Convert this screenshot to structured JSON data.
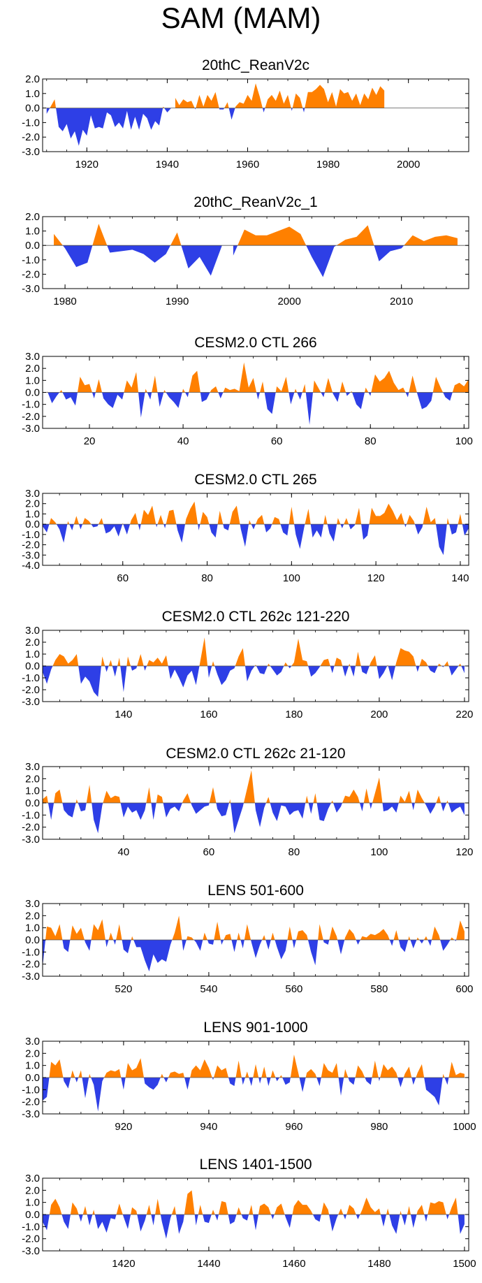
{
  "page_title": "SAM (MAM)",
  "colors": {
    "positive": "#ff8000",
    "negative": "#2e3fe6",
    "axis": "#000000"
  },
  "chart_data": [
    {
      "type": "area",
      "title": "20thC_ReanV2c",
      "xlim": [
        1909,
        2015
      ],
      "ylim": [
        -3,
        2
      ],
      "yticks": [
        2,
        1,
        0,
        -1,
        -2,
        -3
      ],
      "ytick_labels": [
        "2.0",
        "1.0",
        "0.0",
        "-1.0",
        "-2.0",
        "-3.0"
      ],
      "xticks": [
        1920,
        1940,
        1960,
        1980,
        2000
      ],
      "xtick_labels": [
        "1920",
        "1940",
        "1960",
        "1980",
        "2000"
      ],
      "x_start": 1910,
      "values": [
        -0.4,
        0.1,
        0.6,
        -1.3,
        -1.6,
        -1.1,
        -2.1,
        -1.6,
        -2.6,
        -1.5,
        -1.9,
        -0.5,
        -1.4,
        -1.3,
        -1.4,
        -0.3,
        -0.5,
        -1.3,
        -1.0,
        -1.4,
        -0.2,
        -1.5,
        -0.6,
        -1.5,
        -0.4,
        -0.7,
        -1.5,
        -0.9,
        -1.2,
        0.1,
        -0.3,
        0.0,
        0.7,
        0.2,
        0.6,
        0.4,
        0.5,
        -0.1,
        0.9,
        0.1,
        0.9,
        0.5,
        1.1,
        -0.1,
        -0.1,
        0.4,
        -0.8,
        0.1,
        0.4,
        0.3,
        0.9,
        0.5,
        1.7,
        0.8,
        -0.3,
        0.6,
        0.9,
        0.5,
        1.2,
        0.3,
        0.9,
        -0.2,
        1.0,
        0.7,
        -0.3,
        1.1,
        1.1,
        1.3,
        1.6,
        1.3,
        0.4,
        1.1,
        0.1,
        1.3,
        1.0,
        1.1,
        0.5,
        1.0,
        0.2,
        1.0,
        0.6,
        1.4,
        0.9,
        1.5,
        1.2
      ]
    },
    {
      "type": "area",
      "title": "20thC_ReanV2c_1",
      "xlim": [
        1978,
        2016
      ],
      "ylim": [
        -3,
        2
      ],
      "yticks": [
        2,
        1,
        0,
        -1,
        -2,
        -3
      ],
      "ytick_labels": [
        "2.0",
        "1.0",
        "0.0",
        "-1.0",
        "-2.0",
        "-3.0"
      ],
      "xticks": [
        1980,
        1990,
        2000,
        2010
      ],
      "xtick_labels": [
        "1980",
        "1990",
        "2000",
        "2010"
      ],
      "x_start": 1979,
      "values": [
        0.8,
        -0.2,
        -1.5,
        -1.2,
        1.5,
        -0.5,
        -0.4,
        -0.3,
        -0.6,
        -1.2,
        -0.6,
        0.9,
        -1.6,
        -0.8,
        -2.1,
        0.0,
        -0.7,
        1.1,
        0.7,
        0.7,
        1.0,
        1.3,
        0.8,
        -0.8,
        -2.2,
        -0.1,
        0.4,
        0.6,
        1.4,
        -1.1,
        -0.4,
        -0.2,
        0.7,
        0.3,
        0.6,
        0.7,
        0.5
      ]
    },
    {
      "type": "area",
      "title": "CESM2.0 CTL 266",
      "xlim": [
        10,
        101
      ],
      "ylim": [
        -3,
        3
      ],
      "yticks": [
        3,
        2,
        1,
        0,
        -1,
        -2,
        -3
      ],
      "ytick_labels": [
        "3.0",
        "2.0",
        "1.0",
        "0.0",
        "-1.0",
        "-2.0",
        "-3.0"
      ],
      "xticks": [
        20,
        40,
        60,
        80,
        100
      ],
      "xtick_labels": [
        "20",
        "40",
        "60",
        "80",
        "100"
      ],
      "x_start": 11,
      "values": [
        0.1,
        -0.9,
        -0.3,
        0.2,
        -0.6,
        -0.4,
        -1.1,
        1.3,
        0.6,
        0.7,
        -0.5,
        1.1,
        -0.5,
        -1.0,
        -1.3,
        -0.2,
        -0.6,
        1.0,
        0.4,
        1.7,
        -2.1,
        0.3,
        -0.6,
        1.4,
        -1.2,
        0.2,
        -0.4,
        -0.8,
        -1.3,
        0.3,
        -0.4,
        1.4,
        1.8,
        -0.8,
        -0.6,
        0.2,
        0.5,
        -0.5,
        0.4,
        0.2,
        0.3,
        0.1,
        2.5,
        0.4,
        1.2,
        -0.6,
        0.9,
        -1.4,
        -1.8,
        0.5,
        0.1,
        1.3,
        -1.0,
        0.3,
        -0.6,
        0.7,
        -2.7,
        1.0,
        0.3,
        -0.4,
        1.2,
        -0.1,
        -0.8,
        0.9,
        -0.3,
        0.1,
        -1.0,
        -1.4,
        0.4,
        -0.3,
        1.5,
        0.9,
        1.2,
        1.8,
        0.8,
        0.2,
        0.4,
        -0.4,
        1.4,
        -0.1,
        -1.4,
        -1.2,
        -0.7,
        1.3,
        0.4,
        -0.4,
        -0.7,
        0.6,
        0.8,
        0.5,
        1.1
      ]
    },
    {
      "type": "area",
      "title": "CESM2.0 CTL 265",
      "xlim": [
        41,
        142
      ],
      "ylim": [
        -4,
        3
      ],
      "yticks": [
        3,
        2,
        1,
        0,
        -1,
        -2,
        -3,
        -4
      ],
      "ytick_labels": [
        "3.0",
        "2.0",
        "1.0",
        "0.0",
        "-1.0",
        "-2.0",
        "-3.0",
        "-4.0"
      ],
      "xticks": [
        60,
        80,
        100,
        120,
        140
      ],
      "xtick_labels": [
        "60",
        "80",
        "100",
        "120",
        "140"
      ],
      "x_start": 41,
      "values": [
        -0.2,
        -0.8,
        0.6,
        0.2,
        -0.5,
        -1.8,
        0.3,
        -0.6,
        0.8,
        -0.5,
        0.6,
        0.3,
        -0.3,
        -0.2,
        0.6,
        -0.9,
        -0.7,
        -0.2,
        -1.2,
        0.1,
        -1.0,
        0.4,
        1.1,
        -0.6,
        1.4,
        0.9,
        1.8,
        -0.3,
        0.9,
        -0.4,
        1.3,
        1.4,
        -0.6,
        -1.8,
        0.5,
        1.5,
        2.2,
        -0.6,
        1.2,
        0.7,
        -0.8,
        -1.3,
        1.3,
        -0.4,
        -0.6,
        1.2,
        1.8,
        -0.5,
        -2.2,
        0.4,
        -0.5,
        0.5,
        0.9,
        -0.8,
        -0.4,
        0.7,
        0.5,
        -0.8,
        -1.1,
        1.7,
        -1.0,
        -2.4,
        -0.3,
        1.5,
        -1.3,
        -0.6,
        -1.3,
        0.9,
        -0.9,
        -1.7,
        0.6,
        -0.4,
        0.6,
        -0.5,
        -0.1,
        1.6,
        -1.5,
        -1.1,
        1.6,
        0.8,
        0.8,
        1.1,
        2.0,
        1.3,
        0.4,
        1.1,
        -0.3,
        0.9,
        0.3,
        -1.0,
        -0.3,
        1.7,
        0.2,
        0.6,
        -2.2,
        -3.0,
        0.6,
        -1.0,
        -0.8,
        1.0,
        -1.1,
        -0.4
      ]
    },
    {
      "type": "area",
      "title": "CESM2.0 CTL 262c 121-220",
      "xlim": [
        121,
        221
      ],
      "ylim": [
        -3,
        3
      ],
      "yticks": [
        3,
        2,
        1,
        0,
        -1,
        -2,
        -3
      ],
      "ytick_labels": [
        "3.0",
        "2.0",
        "1.0",
        "0.0",
        "-1.0",
        "-2.0",
        "-3.0"
      ],
      "xticks": [
        140,
        160,
        180,
        200,
        220
      ],
      "xtick_labels": [
        "140",
        "160",
        "180",
        "200",
        "220"
      ],
      "x_start": 121,
      "values": [
        -0.5,
        -1.5,
        -0.3,
        0.5,
        1.0,
        0.8,
        0.2,
        0.5,
        1.0,
        -1.5,
        -0.9,
        -1.3,
        -2.2,
        -2.6,
        0.8,
        -0.5,
        0.5,
        -0.9,
        0.7,
        -2.2,
        0.8,
        -0.4,
        -0.2,
        1.0,
        -0.4,
        0.5,
        0.3,
        0.7,
        0.2,
        0.9,
        -1.1,
        -0.3,
        -1.0,
        -1.8,
        -0.8,
        -0.4,
        -1.6,
        0.4,
        2.4,
        -1.0,
        0.4,
        -0.7,
        -1.6,
        -1.2,
        -0.4,
        -0.2,
        0.8,
        1.5,
        -1.3,
        -0.4,
        0.1,
        -0.6,
        -0.7,
        0.2,
        -0.3,
        -0.8,
        -0.5,
        0.3,
        -0.2,
        0.3,
        2.3,
        0.5,
        0.4,
        -0.9,
        -0.6,
        -0.1,
        0.5,
        0.6,
        -0.6,
        0.7,
        0.5,
        -0.9,
        0.2,
        -0.9,
        1.2,
        -0.5,
        -0.7,
        0.3,
        0.9,
        -1.1,
        -0.6,
        0.1,
        -1.2,
        0.3,
        1.5,
        1.3,
        1.2,
        0.8,
        -0.5,
        0.6,
        0.3,
        -0.4,
        -0.6,
        0.2,
        -0.1,
        0.4,
        -0.8,
        -0.3,
        0.2,
        -0.6
      ]
    },
    {
      "type": "area",
      "title": "CESM2.0 CTL 262c 21-120",
      "xlim": [
        21,
        121
      ],
      "ylim": [
        -3,
        3
      ],
      "yticks": [
        3,
        2,
        1,
        0,
        -1,
        -2,
        -3
      ],
      "ytick_labels": [
        "3.0",
        "2.0",
        "1.0",
        "0.0",
        "-1.0",
        "-2.0",
        "-3.0"
      ],
      "xticks": [
        40,
        60,
        80,
        100,
        120
      ],
      "xtick_labels": [
        "40",
        "60",
        "80",
        "100",
        "120"
      ],
      "x_start": 21,
      "values": [
        0.3,
        0.6,
        -1.4,
        0.8,
        1.1,
        -0.6,
        -1.0,
        -1.2,
        0.3,
        -0.7,
        -0.6,
        1.5,
        -1.4,
        -2.5,
        -0.2,
        1.0,
        0.4,
        0.6,
        0.5,
        -1.2,
        -0.3,
        -0.8,
        -0.6,
        -1.4,
        -0.6,
        1.3,
        -1.4,
        0.7,
        0.5,
        -1.2,
        -0.5,
        -0.3,
        -0.7,
        0.2,
        0.8,
        -0.2,
        -0.9,
        -0.6,
        -0.3,
        -0.2,
        1.3,
        -0.5,
        -1.1,
        -1.0,
        0.3,
        -2.5,
        -1.4,
        -0.3,
        1.2,
        2.7,
        -0.6,
        -2.0,
        -0.4,
        0.5,
        -0.8,
        -1.5,
        -0.2,
        -0.3,
        -1.0,
        -0.7,
        -0.6,
        -1.3,
        0.6,
        -0.9,
        0.8,
        -1.4,
        -1.5,
        -0.5,
        0.2,
        -0.8,
        -0.3,
        0.6,
        0.5,
        1.1,
        0.5,
        -0.7,
        1.2,
        -0.5,
        0.8,
        2.1,
        -0.7,
        -0.6,
        -0.3,
        -0.8,
        0.6,
        0.1,
        1.0,
        -0.6,
        1.1,
        0.4,
        -0.2,
        -0.9,
        -0.3,
        0.6,
        -0.7,
        0.2,
        -0.8,
        -0.5,
        -0.3,
        -1.0
      ]
    },
    {
      "type": "area",
      "title": "LENS 501-600",
      "xlim": [
        501,
        601
      ],
      "ylim": [
        -3,
        3
      ],
      "yticks": [
        3,
        2,
        1,
        0,
        -1,
        -2,
        -3
      ],
      "ytick_labels": [
        "3.0",
        "2.0",
        "1.0",
        "0.0",
        "-1.0",
        "-2.0",
        "-3.0"
      ],
      "xticks": [
        520,
        540,
        560,
        580,
        600
      ],
      "xtick_labels": [
        "520",
        "540",
        "560",
        "580",
        "600"
      ],
      "x_start": 501,
      "values": [
        -2.2,
        1.1,
        1.0,
        0.3,
        1.3,
        -0.7,
        -1.0,
        1.2,
        0.5,
        1.0,
        -0.2,
        -0.9,
        1.3,
        0.8,
        1.7,
        -0.6,
        0.6,
        -0.4,
        1.3,
        -0.8,
        -1.1,
        0.3,
        -0.6,
        -0.6,
        -1.7,
        -2.6,
        -1.2,
        -1.9,
        -1.6,
        -1.8,
        -0.4,
        0.6,
        2.0,
        -0.9,
        0.3,
        0.2,
        -0.2,
        -0.9,
        0.6,
        -0.3,
        -0.4,
        1.5,
        -0.4,
        0.4,
        0.5,
        -1.0,
        0.6,
        -0.7,
        1.3,
        -0.2,
        -1.5,
        -0.4,
        0.4,
        -0.8,
        0.6,
        -0.6,
        -1.6,
        -0.9,
        1.1,
        -0.7,
        0.7,
        0.8,
        0.4,
        -1.0,
        -2.1,
        1.3,
        -0.2,
        -0.4,
        1.1,
        0.3,
        -1.2,
        0.2,
        0.9,
        0.5,
        -0.4,
        0.3,
        0.2,
        0.5,
        0.4,
        0.6,
        0.9,
        0.4,
        -0.5,
        0.8,
        -0.6,
        -1.0,
        0.3,
        -0.7,
        0.2,
        -0.3,
        0.3,
        -0.5,
        1.1,
        0.4,
        -0.9,
        -0.4,
        0.2,
        -0.1,
        1.6,
        0.7
      ]
    },
    {
      "type": "area",
      "title": "LENS 901-1000",
      "xlim": [
        901,
        1001
      ],
      "ylim": [
        -3,
        3
      ],
      "yticks": [
        3,
        2,
        1,
        0,
        -1,
        -2,
        -3
      ],
      "ytick_labels": [
        "3.0",
        "2.0",
        "1.0",
        "0.0",
        "-1.0",
        "-2.0",
        "-3.0"
      ],
      "xticks": [
        920,
        940,
        960,
        980,
        1000
      ],
      "xtick_labels": [
        "920",
        "940",
        "960",
        "980",
        "1000"
      ],
      "x_start": 901,
      "values": [
        -1.9,
        -1.6,
        1.3,
        1.0,
        1.5,
        -0.3,
        -0.9,
        0.6,
        -0.4,
        0.6,
        -1.7,
        0.3,
        -0.6,
        -2.8,
        -0.3,
        0.4,
        0.6,
        0.5,
        0.7,
        -1.0,
        1.2,
        0.6,
        0.8,
        1.6,
        -0.5,
        -0.8,
        -1.0,
        -0.6,
        0.3,
        -0.4,
        0.4,
        0.5,
        0.3,
        0.4,
        -1.0,
        0.6,
        1.0,
        0.6,
        1.5,
        0.8,
        -0.2,
        1.0,
        0.6,
        0.8,
        -0.5,
        -0.7,
        1.4,
        -0.6,
        0.5,
        -0.7,
        1.1,
        -0.5,
        0.9,
        -0.7,
        0.6,
        -0.3,
        0.2,
        -0.6,
        -0.4,
        1.9,
        0.4,
        -1.2,
        0.4,
        0.7,
        0.3,
        -0.7,
        1.2,
        0.6,
        0.4,
        1.2,
        -1.5,
        0.7,
        -0.3,
        -0.6,
        1.0,
        0.5,
        -0.3,
        -0.6,
        1.4,
        -0.3,
        1.1,
        0.6,
        0.9,
        0.4,
        -0.8,
        0.3,
        0.9,
        -0.6,
        0.4,
        1.1,
        -1.0,
        -1.3,
        -1.6,
        -2.3,
        0.3,
        -0.6,
        1.3,
        0.2,
        0.4,
        0.3
      ]
    },
    {
      "type": "area",
      "title": "LENS 1401-1500",
      "xlim": [
        1401,
        1501
      ],
      "ylim": [
        -3,
        3
      ],
      "yticks": [
        3,
        2,
        1,
        0,
        -1,
        -2,
        -3
      ],
      "ytick_labels": [
        "3.0",
        "2.0",
        "1.0",
        "0.0",
        "-1.0",
        "-2.0",
        "-3.0"
      ],
      "xticks": [
        1420,
        1440,
        1460,
        1480,
        1500
      ],
      "xtick_labels": [
        "1420",
        "1440",
        "1460",
        "1480",
        "1500"
      ],
      "x_start": 1401,
      "values": [
        -0.6,
        -1.3,
        0.8,
        1.3,
        0.6,
        -0.6,
        -1.2,
        1.0,
        0.5,
        -0.6,
        0.7,
        -0.9,
        0.4,
        -1.2,
        -0.6,
        -1.5,
        -0.3,
        -0.4,
        0.9,
        -0.2,
        -1.2,
        0.6,
        0.3,
        -1.4,
        -0.5,
        0.8,
        -0.9,
        1.3,
        -0.6,
        -2.0,
        -0.3,
        0.7,
        -1.6,
        -0.6,
        1.7,
        2.0,
        -0.9,
        0.8,
        -0.6,
        -0.7,
        0.4,
        -0.5,
        1.1,
        1.0,
        -0.8,
        -0.6,
        0.6,
        -0.3,
        -0.5,
        0.8,
        -1.3,
        0.7,
        0.9,
        0.6,
        -0.4,
        0.6,
        0.9,
        -0.2,
        -1.1,
        0.7,
        1.2,
        0.8,
        0.8,
        0.3,
        -0.4,
        -0.6,
        1.0,
        0.4,
        -1.4,
        -0.3,
        0.5,
        -0.4,
        0.8,
        0.5,
        -0.4,
        0.4,
        1.4,
        0.6,
        0.2,
        0.5,
        -1.0,
        0.5,
        -0.9,
        -1.6,
        0.3,
        -0.9,
        0.7,
        -1.1,
        0.3,
        0.8,
        -0.6,
        1.0,
        0.9,
        1.1,
        1.0,
        -0.4,
        0.6,
        1.4,
        -1.6,
        -0.8
      ]
    }
  ]
}
